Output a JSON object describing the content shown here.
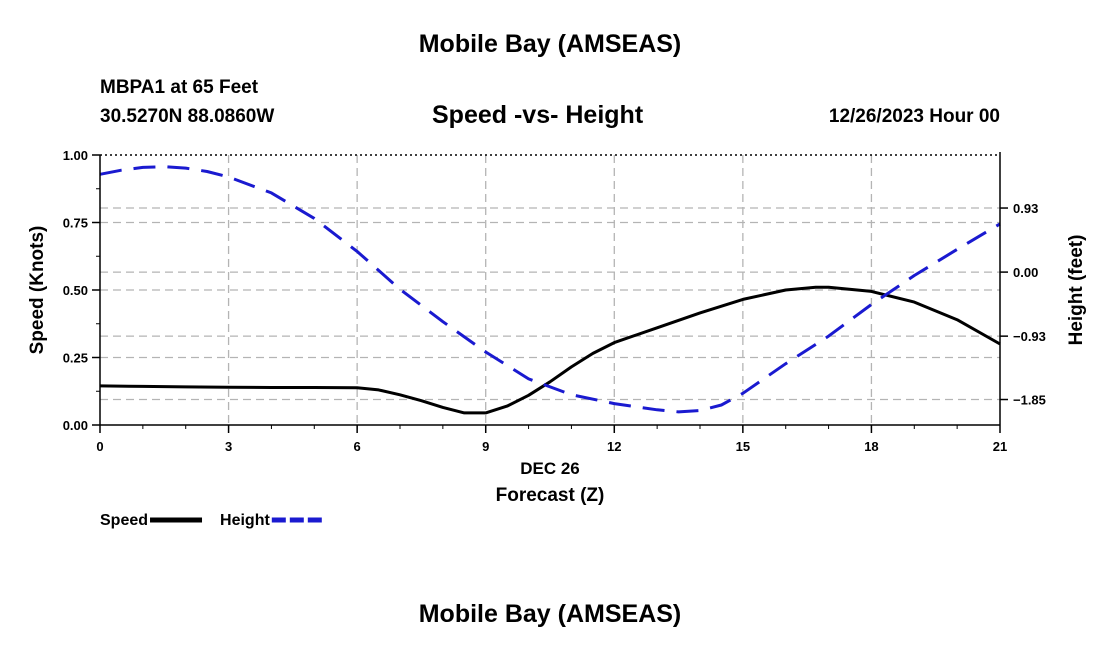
{
  "header": {
    "title": "Mobile Bay (AMSEAS)",
    "station": "MBPA1 at 65 Feet",
    "coords": "30.5270N  88.0860W",
    "chart_title": "Speed -vs- Height",
    "date": "12/26/2023 Hour 00"
  },
  "footer": {
    "title": "Mobile Bay (AMSEAS)"
  },
  "colors": {
    "speed": "#000000",
    "height": "#1a1ad0",
    "grid": "#b4b4b4"
  },
  "chart_data": {
    "type": "line",
    "title": "Speed -vs- Height",
    "xlabel": "Forecast (Z)",
    "xsublabel": "DEC 26",
    "ylabel": "Speed (Knots)",
    "y2label": "Height (feet)",
    "xlim": [
      0,
      21
    ],
    "ylim": [
      0,
      1
    ],
    "y2lim": [
      -2.22,
      1.7
    ],
    "xticks": [
      0,
      3,
      6,
      9,
      12,
      15,
      18,
      21
    ],
    "xtick_labels": [
      "0",
      "3",
      "6",
      "9",
      "12",
      "15",
      "18",
      "21"
    ],
    "yticks": [
      0,
      0.25,
      0.5,
      0.75,
      1.0
    ],
    "ytick_labels": [
      "0.00",
      "0.25",
      "0.50",
      "0.75",
      "1.00"
    ],
    "y2ticks": [
      -1.85,
      -0.93,
      0.0,
      0.93
    ],
    "y2tick_labels": [
      "−1.85",
      "−0.93",
      "0.00",
      "0.93"
    ],
    "grid": true,
    "series": [
      {
        "name": "Speed",
        "axis": "left",
        "style": "solid",
        "x": [
          0,
          1,
          2,
          3,
          4,
          5,
          6,
          6.5,
          7,
          7.5,
          8,
          8.5,
          9,
          9.5,
          10,
          10.5,
          11,
          11.5,
          12,
          13,
          14,
          15,
          16,
          16.7,
          17,
          18,
          19,
          20,
          21
        ],
        "values": [
          0.145,
          0.143,
          0.141,
          0.14,
          0.139,
          0.139,
          0.138,
          0.13,
          0.112,
          0.09,
          0.065,
          0.045,
          0.045,
          0.07,
          0.11,
          0.16,
          0.215,
          0.265,
          0.305,
          0.36,
          0.415,
          0.465,
          0.5,
          0.51,
          0.51,
          0.495,
          0.455,
          0.39,
          0.3
        ]
      },
      {
        "name": "Height",
        "axis": "right",
        "style": "dashed",
        "x": [
          0,
          0.5,
          1,
          1.5,
          2,
          2.5,
          3,
          4,
          5,
          6,
          7,
          8,
          9,
          10,
          11,
          12,
          13,
          13.5,
          14,
          14.5,
          15,
          16,
          17,
          18,
          19,
          20,
          21
        ],
        "values": [
          1.42,
          1.48,
          1.52,
          1.53,
          1.51,
          1.46,
          1.38,
          1.15,
          0.78,
          0.3,
          -0.25,
          -0.72,
          -1.16,
          -1.55,
          -1.78,
          -1.91,
          -2.0,
          -2.03,
          -2.01,
          -1.93,
          -1.76,
          -1.33,
          -0.93,
          -0.47,
          -0.05,
          0.33,
          0.7
        ]
      }
    ],
    "legend": [
      {
        "label": "Speed",
        "style": "solid"
      },
      {
        "label": "Height",
        "style": "dashed"
      }
    ],
    "legend_position": "bottom-left"
  }
}
